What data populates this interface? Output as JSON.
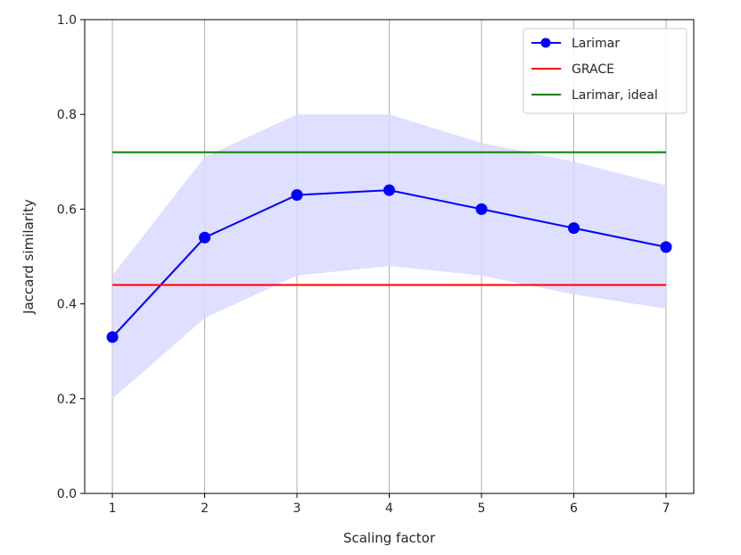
{
  "chart_data": {
    "type": "line",
    "xlabel": "Scaling factor",
    "ylabel": "Jaccard similarity",
    "x": [
      1,
      2,
      3,
      4,
      5,
      6,
      7
    ],
    "xlim": [
      0.7,
      7.3
    ],
    "ylim": [
      0.0,
      1.0
    ],
    "xticks": [
      "1",
      "2",
      "3",
      "4",
      "5",
      "6",
      "7"
    ],
    "yticks": [
      "0.0",
      "0.2",
      "0.4",
      "0.6",
      "0.8",
      "1.0"
    ],
    "grid": "vertical",
    "legend_position": "top-right",
    "series": [
      {
        "name": "Larimar",
        "values": [
          0.33,
          0.54,
          0.63,
          0.64,
          0.6,
          0.56,
          0.52
        ],
        "band_lower": [
          0.2,
          0.37,
          0.46,
          0.48,
          0.46,
          0.42,
          0.39
        ],
        "band_upper": [
          0.46,
          0.71,
          0.8,
          0.8,
          0.74,
          0.7,
          0.65
        ],
        "color": "#0000ff",
        "band_color": "#d9d9ff",
        "marker": "circle"
      },
      {
        "name": "GRACE",
        "values": [
          0.44,
          0.44,
          0.44,
          0.44,
          0.44,
          0.44,
          0.44
        ],
        "color": "#ff0000"
      },
      {
        "name": "Larimar, ideal",
        "values": [
          0.72,
          0.72,
          0.72,
          0.72,
          0.72,
          0.72,
          0.72
        ],
        "color": "#008000"
      }
    ]
  }
}
